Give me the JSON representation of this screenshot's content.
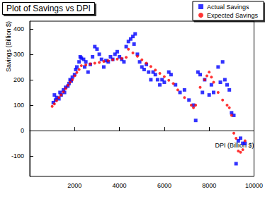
{
  "chart_data": {
    "type": "scatter",
    "title": "Plot of Savings vs DPI",
    "x_label": "DPI (Billion $)",
    "y_label": "Savings (Billion $)",
    "xlim": [
      0,
      10000
    ],
    "xticks": [
      2000,
      4000,
      6000,
      8000,
      10000
    ],
    "ylim": [
      -180,
      430
    ],
    "yticks": [
      -100,
      0,
      100,
      200,
      300,
      400
    ],
    "grid": false,
    "legend": "top-right",
    "series": [
      {
        "name": "Actual Savings",
        "color": "#0000ff",
        "marker": "square",
        "x": [
          1050,
          1100,
          1150,
          1200,
          1300,
          1350,
          1400,
          1500,
          1550,
          1600,
          1700,
          1750,
          1800,
          1850,
          1900,
          2000,
          2050,
          2100,
          2200,
          2250,
          2300,
          2400,
          2450,
          2500,
          2600,
          2700,
          2800,
          2900,
          3000,
          3100,
          3200,
          3300,
          3400,
          3500,
          3600,
          3700,
          3800,
          3900,
          4000,
          4100,
          4200,
          4300,
          4400,
          4500,
          4600,
          4700,
          4650,
          4800,
          4900,
          5000,
          5100,
          5200,
          5300,
          5400,
          5500,
          5600,
          5700,
          5800,
          5900,
          6000,
          6200,
          6300,
          6500,
          6700,
          6900,
          7100,
          7300,
          7400,
          7500,
          7600,
          7700,
          7800,
          8000,
          8100,
          8200,
          8400,
          8500,
          8600,
          8700,
          8800,
          8900,
          9000,
          9100,
          9200,
          9300,
          9400,
          9500,
          9600
        ],
        "values": [
          110,
          140,
          120,
          130,
          125,
          150,
          140,
          160,
          150,
          170,
          175,
          185,
          200,
          195,
          210,
          220,
          240,
          250,
          270,
          290,
          285,
          280,
          250,
          270,
          230,
          260,
          290,
          330,
          320,
          300,
          280,
          250,
          275,
          270,
          290,
          280,
          300,
          310,
          290,
          280,
          270,
          330,
          350,
          360,
          370,
          380,
          340,
          300,
          270,
          250,
          240,
          260,
          230,
          200,
          230,
          220,
          200,
          180,
          200,
          190,
          230,
          220,
          180,
          150,
          160,
          120,
          100,
          40,
          230,
          220,
          150,
          200,
          140,
          180,
          150,
          250,
          190,
          270,
          200,
          180,
          160,
          70,
          60,
          -130,
          -40,
          -30,
          -50,
          -50
        ]
      },
      {
        "name": "Expected Savings",
        "color": "#ff0000",
        "marker": "circle",
        "x": [
          1000,
          1100,
          1200,
          1300,
          1400,
          1500,
          1600,
          1700,
          1800,
          1900,
          2000,
          2100,
          2200,
          2300,
          2500,
          2700,
          2900,
          3100,
          3300,
          3500,
          3700,
          3900,
          4100,
          4300,
          4400,
          4600,
          4800,
          5000,
          5200,
          5400,
          5600,
          5800,
          6000,
          6200,
          6400,
          6600,
          6900,
          7200,
          7300,
          7400,
          7600,
          7800,
          7900,
          8000,
          8100,
          8200,
          8400,
          8600,
          8800,
          8900,
          9000,
          9100,
          9200,
          9300,
          9400,
          9500,
          9600
        ],
        "values": [
          95,
          105,
          118,
          130,
          140,
          152,
          165,
          178,
          190,
          200,
          215,
          228,
          240,
          255,
          258,
          262,
          265,
          268,
          272,
          275,
          278,
          281,
          284,
          288,
          320,
          305,
          292,
          278,
          265,
          252,
          238,
          225,
          212,
          198,
          185,
          160,
          130,
          100,
          90,
          100,
          170,
          200,
          215,
          230,
          210,
          190,
          150,
          120,
          100,
          90,
          60,
          -10,
          -30,
          -80,
          -85,
          -75,
          -40
        ]
      }
    ]
  }
}
